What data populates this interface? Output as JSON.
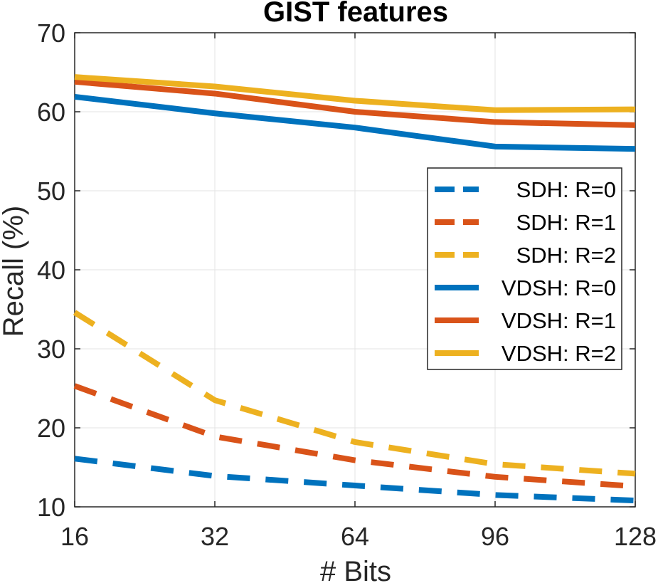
{
  "chart_data": {
    "type": "line",
    "title": "GIST features",
    "xlabel": "# Bits",
    "ylabel": "Recall (%)",
    "x": [
      16,
      32,
      64,
      96,
      128
    ],
    "x_ticks": [
      "16",
      "32",
      "64",
      "96",
      "128"
    ],
    "ylim": [
      10,
      70
    ],
    "y_ticks": [
      "10",
      "20",
      "30",
      "40",
      "50",
      "60",
      "70"
    ],
    "grid": true,
    "legend_position": "right",
    "series": [
      {
        "name": "SDH: R=0",
        "style": "dashed",
        "color": "#0072BD",
        "values": [
          16.1,
          13.9,
          12.7,
          11.5,
          10.8
        ]
      },
      {
        "name": "SDH: R=1",
        "style": "dashed",
        "color": "#D95319",
        "values": [
          25.3,
          18.9,
          15.9,
          13.8,
          12.6
        ]
      },
      {
        "name": "SDH: R=2",
        "style": "dashed",
        "color": "#EDB120",
        "values": [
          34.6,
          23.5,
          18.2,
          15.4,
          14.2
        ]
      },
      {
        "name": "VDSH: R=0",
        "style": "solid",
        "color": "#0072BD",
        "values": [
          61.9,
          59.8,
          58.0,
          55.6,
          55.3
        ]
      },
      {
        "name": "VDSH: R=1",
        "style": "solid",
        "color": "#D95319",
        "values": [
          63.8,
          62.3,
          60.0,
          58.7,
          58.3
        ]
      },
      {
        "name": "VDSH: R=2",
        "style": "solid",
        "color": "#EDB120",
        "values": [
          64.4,
          63.2,
          61.4,
          60.2,
          60.3
        ]
      }
    ]
  }
}
